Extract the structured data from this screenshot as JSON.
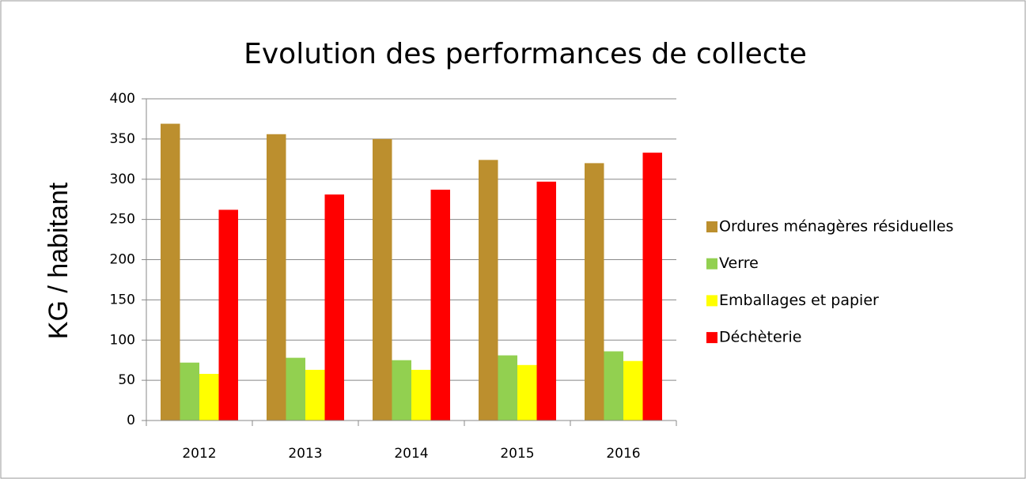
{
  "chart_data": {
    "type": "bar",
    "title": "Evolution des performances de collecte",
    "y_label": "KG / habitant",
    "categories": [
      "2012",
      "2013",
      "2014",
      "2015",
      "2016"
    ],
    "series": [
      {
        "name": "Ordures ménagères résiduelles",
        "color": "#bc8f2e",
        "values": [
          369,
          356,
          350,
          324,
          320
        ]
      },
      {
        "name": "Verre",
        "color": "#92d050",
        "values": [
          72,
          78,
          75,
          81,
          86
        ]
      },
      {
        "name": "Emballages et papier",
        "color": "#ffff00",
        "values": [
          58,
          63,
          63,
          69,
          74
        ]
      },
      {
        "name": "Déchèterie",
        "color": "#ff0000",
        "values": [
          262,
          281,
          287,
          297,
          333
        ]
      }
    ],
    "ylim": [
      0,
      400
    ],
    "yticks": [
      0,
      50,
      100,
      150,
      200,
      250,
      300,
      350,
      400
    ],
    "grid": true,
    "legend": "right"
  }
}
